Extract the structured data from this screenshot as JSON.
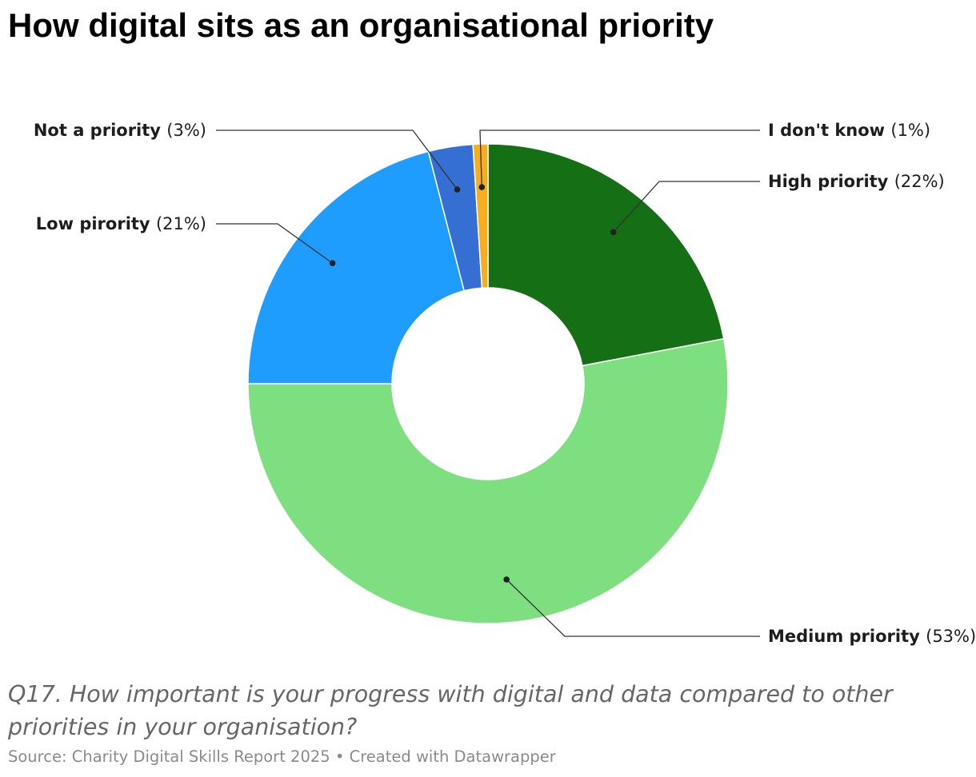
{
  "header": {
    "title": "How digital sits as an organisational priority"
  },
  "chart_data": {
    "type": "pie",
    "donut": true,
    "slices": [
      {
        "name": "High priority",
        "value": 22,
        "value_label": "(22%)",
        "color": "#146f15",
        "label_side": "right"
      },
      {
        "name": "Medium priority",
        "value": 53,
        "value_label": "(53%)",
        "color": "#7ddf7f",
        "label_side": "right"
      },
      {
        "name": "Low pirority",
        "value": 21,
        "value_label": "(21%)",
        "color": "#1f9dff",
        "label_side": "left"
      },
      {
        "name": "Not a priority",
        "value": 3,
        "value_label": "(3%)",
        "color": "#356fd3",
        "label_side": "left"
      },
      {
        "name": "I don't know",
        "value": 1,
        "value_label": "(1%)",
        "color": "#f7ae1e",
        "label_side": "right"
      }
    ]
  },
  "caption": "Q17. How important is your progress with digital and data compared to other priorities in your organisation?",
  "footer": {
    "source": "Source: Charity Digital Skills Report 2025",
    "separator": " • ",
    "credit": "Created with Datawrapper"
  }
}
